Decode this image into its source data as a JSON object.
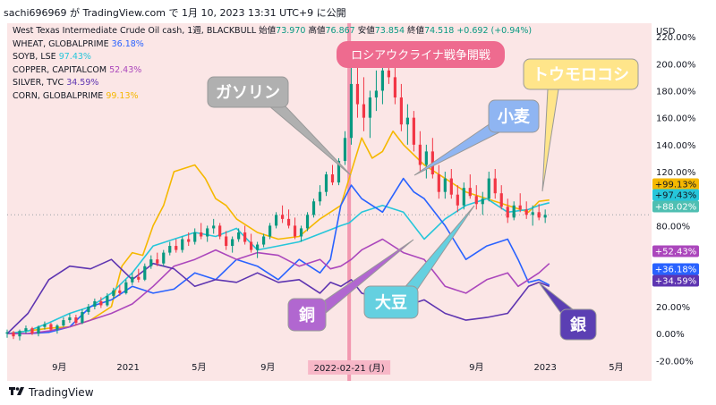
{
  "header": {
    "text": "sachi696969 が TradingView.com で 1月 10, 2023 13:31 UTC+9 に公開"
  },
  "legend": {
    "main": {
      "title": "West Texas Intermediate Crude Oil cash, 1週, BLACKBULL",
      "open_label": "始値",
      "open": "73.970",
      "high_label": "高値",
      "high": "76.867",
      "low_label": "安値",
      "low": "73.854",
      "close_label": "終値",
      "close": "74.518",
      "change": "+0.692 (+0.94%)"
    },
    "rows": [
      {
        "name": "WHEAT, GLOBALPRIME",
        "value": "36.18%",
        "color": "#2962ff"
      },
      {
        "name": "SOYB, LSE",
        "value": "97.43%",
        "color": "#26c6da"
      },
      {
        "name": "COPPER, CAPITALCOM",
        "value": "52.43%",
        "color": "#ab47bc"
      },
      {
        "name": "SILVER, TVC",
        "value": "34.59%",
        "color": "#5e35b1"
      },
      {
        "name": "CORN, GLOBALPRIME",
        "value": "99.13%",
        "color": "#f5b800"
      }
    ]
  },
  "chart_data": {
    "type": "line",
    "y_axis_unit": "USD",
    "yticks": [
      "220.00%",
      "200.00%",
      "180.00%",
      "160.00%",
      "140.00%",
      "120.00%",
      "100.00%",
      "80.00%",
      "60.00%",
      "40.00%",
      "20.00%",
      "0.00%",
      "-20.00%"
    ],
    "ytick_values": [
      220,
      200,
      180,
      160,
      140,
      120,
      100,
      80,
      60,
      40,
      20,
      0,
      -20
    ],
    "ylim": [
      -35,
      230
    ],
    "xticks": [
      {
        "label": "9月",
        "t": 0.25
      },
      {
        "label": "2021",
        "t": 0.58
      },
      {
        "label": "5月",
        "t": 0.92
      },
      {
        "label": "9月",
        "t": 1.25
      },
      {
        "label": "2022-02-21 (月)",
        "t": 1.64
      },
      {
        "label": "9月",
        "t": 2.25
      },
      {
        "label": "2023",
        "t": 2.58
      },
      {
        "label": "5月",
        "t": 2.92
      }
    ],
    "xlim": [
      0,
      3.09
    ],
    "event_t": 1.64,
    "crosshair_label": "2022-02-21 (月)",
    "reference_level": 88.02,
    "badges": [
      {
        "text": "+99.13%",
        "value": 99.13,
        "color": "#f5b800",
        "text_color": "#131722"
      },
      {
        "text": "+97.43%",
        "value": 97.43,
        "color": "#26c6da",
        "text_color": "#131722"
      },
      {
        "text": "+88.02%",
        "value": 88.02,
        "color": "#4fbfb2",
        "text_color": "#ffffff"
      },
      {
        "text": "+52.43%",
        "value": 52.43,
        "color": "#ab47bc",
        "text_color": "#ffffff"
      },
      {
        "text": "+36.18%",
        "value": 36.18,
        "color": "#2962ff",
        "text_color": "#ffffff"
      },
      {
        "text": "+34.59%",
        "value": 34.59,
        "color": "#5e35b1",
        "text_color": "#ffffff"
      }
    ],
    "series": [
      {
        "name": "CORN, GLOBALPRIME",
        "color": "#f5b800",
        "t": [
          0,
          0.1,
          0.2,
          0.3,
          0.4,
          0.5,
          0.55,
          0.6,
          0.65,
          0.7,
          0.75,
          0.8,
          0.9,
          0.95,
          1.0,
          1.05,
          1.1,
          1.2,
          1.3,
          1.4,
          1.5,
          1.6,
          1.7,
          1.75,
          1.8,
          1.85,
          1.9,
          2.0,
          2.1,
          2.2,
          2.3,
          2.4,
          2.5,
          2.55,
          2.6
        ],
        "values": [
          0,
          2,
          4,
          5,
          10,
          20,
          50,
          60,
          58,
          80,
          95,
          120,
          125,
          115,
          100,
          95,
          85,
          75,
          70,
          72,
          85,
          95,
          145,
          130,
          135,
          150,
          140,
          125,
          115,
          105,
          100,
          95,
          90,
          98,
          99
        ]
      },
      {
        "name": "SOYB, LSE",
        "color": "#26c6da",
        "t": [
          0,
          0.1,
          0.2,
          0.3,
          0.4,
          0.5,
          0.6,
          0.7,
          0.8,
          0.9,
          1.0,
          1.1,
          1.2,
          1.3,
          1.4,
          1.5,
          1.6,
          1.64,
          1.7,
          1.8,
          1.9,
          2.0,
          2.1,
          2.2,
          2.3,
          2.4,
          2.5,
          2.55,
          2.6
        ],
        "values": [
          0,
          2,
          8,
          15,
          20,
          30,
          45,
          65,
          70,
          75,
          72,
          78,
          62,
          65,
          68,
          74,
          80,
          82,
          90,
          95,
          90,
          70,
          85,
          95,
          100,
          90,
          92,
          95,
          97
        ]
      },
      {
        "name": "WHEAT, GLOBALPRIME",
        "color": "#2962ff",
        "t": [
          0,
          0.1,
          0.2,
          0.3,
          0.4,
          0.5,
          0.6,
          0.7,
          0.8,
          0.9,
          1.0,
          1.1,
          1.2,
          1.3,
          1.4,
          1.5,
          1.55,
          1.6,
          1.65,
          1.7,
          1.8,
          1.9,
          1.95,
          2.0,
          2.1,
          2.2,
          2.3,
          2.4,
          2.45,
          2.5,
          2.55,
          2.6
        ],
        "values": [
          0,
          0,
          1,
          5,
          20,
          25,
          35,
          30,
          33,
          45,
          40,
          55,
          50,
          40,
          55,
          45,
          55,
          95,
          110,
          100,
          90,
          115,
          105,
          100,
          80,
          55,
          65,
          70,
          55,
          38,
          40,
          36
        ]
      },
      {
        "name": "COPPER, CAPITALCOM",
        "color": "#ab47bc",
        "t": [
          0,
          0.1,
          0.2,
          0.3,
          0.4,
          0.5,
          0.6,
          0.7,
          0.8,
          0.9,
          1.0,
          1.1,
          1.2,
          1.3,
          1.4,
          1.5,
          1.55,
          1.6,
          1.65,
          1.7,
          1.8,
          1.9,
          2.0,
          2.1,
          2.2,
          2.3,
          2.4,
          2.45,
          2.5,
          2.55,
          2.6
        ],
        "values": [
          0,
          0,
          2,
          5,
          10,
          15,
          22,
          35,
          50,
          55,
          62,
          55,
          60,
          58,
          50,
          55,
          48,
          50,
          55,
          62,
          70,
          60,
          55,
          35,
          30,
          40,
          45,
          35,
          40,
          45,
          52
        ]
      },
      {
        "name": "SILVER, TVC",
        "color": "#5e35b1",
        "t": [
          0,
          0.1,
          0.2,
          0.3,
          0.4,
          0.5,
          0.6,
          0.7,
          0.8,
          0.9,
          1.0,
          1.1,
          1.2,
          1.3,
          1.4,
          1.5,
          1.55,
          1.6,
          1.65,
          1.7,
          1.8,
          1.9,
          2.0,
          2.1,
          2.2,
          2.3,
          2.4,
          2.45,
          2.5,
          2.55,
          2.6
        ],
        "values": [
          0,
          15,
          40,
          50,
          48,
          55,
          40,
          52,
          48,
          35,
          40,
          38,
          45,
          38,
          40,
          30,
          38,
          35,
          40,
          30,
          25,
          20,
          25,
          15,
          10,
          12,
          15,
          25,
          35,
          38,
          35
        ]
      }
    ],
    "oil_candles": [
      [
        0,
        0,
        3,
        -3,
        1
      ],
      [
        0.03,
        1,
        2,
        -4,
        -2
      ],
      [
        0.06,
        -2,
        3,
        -5,
        2
      ],
      [
        0.09,
        2,
        6,
        0,
        4
      ],
      [
        0.12,
        4,
        5,
        -1,
        0
      ],
      [
        0.15,
        0,
        6,
        -2,
        5
      ],
      [
        0.18,
        5,
        9,
        3,
        7
      ],
      [
        0.21,
        7,
        8,
        2,
        3
      ],
      [
        0.24,
        3,
        7,
        0,
        6
      ],
      [
        0.27,
        6,
        12,
        5,
        10
      ],
      [
        0.3,
        10,
        15,
        8,
        12
      ],
      [
        0.33,
        12,
        14,
        6,
        8
      ],
      [
        0.36,
        8,
        18,
        7,
        16
      ],
      [
        0.39,
        16,
        22,
        14,
        20
      ],
      [
        0.42,
        20,
        26,
        18,
        24
      ],
      [
        0.45,
        24,
        27,
        19,
        21
      ],
      [
        0.48,
        21,
        30,
        20,
        28
      ],
      [
        0.51,
        28,
        34,
        26,
        32
      ],
      [
        0.54,
        32,
        36,
        28,
        30
      ],
      [
        0.57,
        30,
        40,
        29,
        38
      ],
      [
        0.6,
        38,
        45,
        36,
        42
      ],
      [
        0.63,
        42,
        48,
        38,
        40
      ],
      [
        0.66,
        40,
        52,
        39,
        50
      ],
      [
        0.69,
        50,
        58,
        48,
        55
      ],
      [
        0.72,
        55,
        60,
        50,
        52
      ],
      [
        0.75,
        52,
        62,
        50,
        60
      ],
      [
        0.78,
        60,
        68,
        58,
        65
      ],
      [
        0.81,
        65,
        70,
        60,
        62
      ],
      [
        0.84,
        62,
        72,
        60,
        70
      ],
      [
        0.87,
        70,
        75,
        65,
        68
      ],
      [
        0.9,
        68,
        78,
        66,
        75
      ],
      [
        0.93,
        75,
        82,
        70,
        72
      ],
      [
        0.96,
        72,
        80,
        68,
        78
      ],
      [
        0.99,
        78,
        85,
        74,
        80
      ],
      [
        1.02,
        80,
        82,
        70,
        72
      ],
      [
        1.05,
        72,
        76,
        62,
        65
      ],
      [
        1.08,
        65,
        72,
        60,
        70
      ],
      [
        1.11,
        70,
        78,
        68,
        75
      ],
      [
        1.14,
        75,
        80,
        66,
        68
      ],
      [
        1.17,
        68,
        74,
        60,
        62
      ],
      [
        1.2,
        62,
        68,
        56,
        66
      ],
      [
        1.23,
        66,
        74,
        64,
        72
      ],
      [
        1.26,
        72,
        82,
        70,
        80
      ],
      [
        1.29,
        80,
        90,
        78,
        88
      ],
      [
        1.32,
        88,
        95,
        82,
        85
      ],
      [
        1.35,
        85,
        92,
        78,
        80
      ],
      [
        1.38,
        80,
        86,
        70,
        72
      ],
      [
        1.41,
        72,
        80,
        68,
        78
      ],
      [
        1.44,
        78,
        90,
        76,
        88
      ],
      [
        1.47,
        88,
        100,
        86,
        98
      ],
      [
        1.5,
        98,
        110,
        95,
        105
      ],
      [
        1.53,
        105,
        120,
        102,
        118
      ],
      [
        1.56,
        118,
        125,
        110,
        112
      ],
      [
        1.59,
        112,
        130,
        110,
        128
      ],
      [
        1.62,
        128,
        150,
        125,
        145
      ],
      [
        1.65,
        145,
        200,
        140,
        185
      ],
      [
        1.68,
        185,
        210,
        160,
        170
      ],
      [
        1.71,
        170,
        190,
        150,
        160
      ],
      [
        1.74,
        160,
        180,
        145,
        175
      ],
      [
        1.77,
        175,
        195,
        165,
        180
      ],
      [
        1.8,
        180,
        200,
        170,
        195
      ],
      [
        1.83,
        195,
        212,
        185,
        190
      ],
      [
        1.86,
        190,
        205,
        170,
        175
      ],
      [
        1.89,
        175,
        185,
        150,
        155
      ],
      [
        1.92,
        155,
        170,
        140,
        160
      ],
      [
        1.95,
        160,
        165,
        135,
        140
      ],
      [
        1.98,
        140,
        150,
        120,
        125
      ],
      [
        2.01,
        125,
        140,
        115,
        135
      ],
      [
        2.04,
        135,
        145,
        115,
        118
      ],
      [
        2.07,
        118,
        125,
        100,
        105
      ],
      [
        2.1,
        105,
        120,
        100,
        115
      ],
      [
        2.13,
        115,
        122,
        100,
        103
      ],
      [
        2.16,
        103,
        110,
        90,
        95
      ],
      [
        2.19,
        95,
        112,
        92,
        108
      ],
      [
        2.22,
        108,
        118,
        100,
        102
      ],
      [
        2.25,
        102,
        110,
        92,
        96
      ],
      [
        2.28,
        96,
        105,
        88,
        100
      ],
      [
        2.31,
        100,
        120,
        98,
        115
      ],
      [
        2.34,
        115,
        122,
        100,
        104
      ],
      [
        2.37,
        104,
        110,
        92,
        94
      ],
      [
        2.4,
        94,
        100,
        82,
        86
      ],
      [
        2.43,
        86,
        98,
        84,
        95
      ],
      [
        2.46,
        95,
        104,
        90,
        92
      ],
      [
        2.49,
        92,
        98,
        85,
        88
      ],
      [
        2.52,
        88,
        95,
        80,
        90
      ],
      [
        2.55,
        90,
        96,
        84,
        86
      ],
      [
        2.58,
        86,
        92,
        82,
        88
      ]
    ],
    "annotations": [
      {
        "text": "ロシアウクライナ戦争開戦",
        "fill": "#ee6b8f",
        "text_color": "#ffffff"
      },
      {
        "text": "ガソリン",
        "fill": "#b0b0b0",
        "text_color": "#ffffff"
      },
      {
        "text": "小麦",
        "fill": "#8fb5f2",
        "text_color": "#ffffff"
      },
      {
        "text": "トウモロコシ",
        "fill": "#ffe58a",
        "text_color": "#ffffff"
      },
      {
        "text": "銅",
        "fill": "#b167d0",
        "text_color": "#ffffff"
      },
      {
        "text": "大豆",
        "fill": "#64d0e0",
        "text_color": "#ffffff"
      },
      {
        "text": "銀",
        "fill": "#5b3fb3",
        "text_color": "#ffffff"
      }
    ]
  },
  "footer": {
    "brand": "TradingView"
  },
  "colors": {
    "candle_up": "#089981",
    "candle_down": "#f23645",
    "plot_bg": "#fbe6e6",
    "event_line": "#f08aa6"
  }
}
